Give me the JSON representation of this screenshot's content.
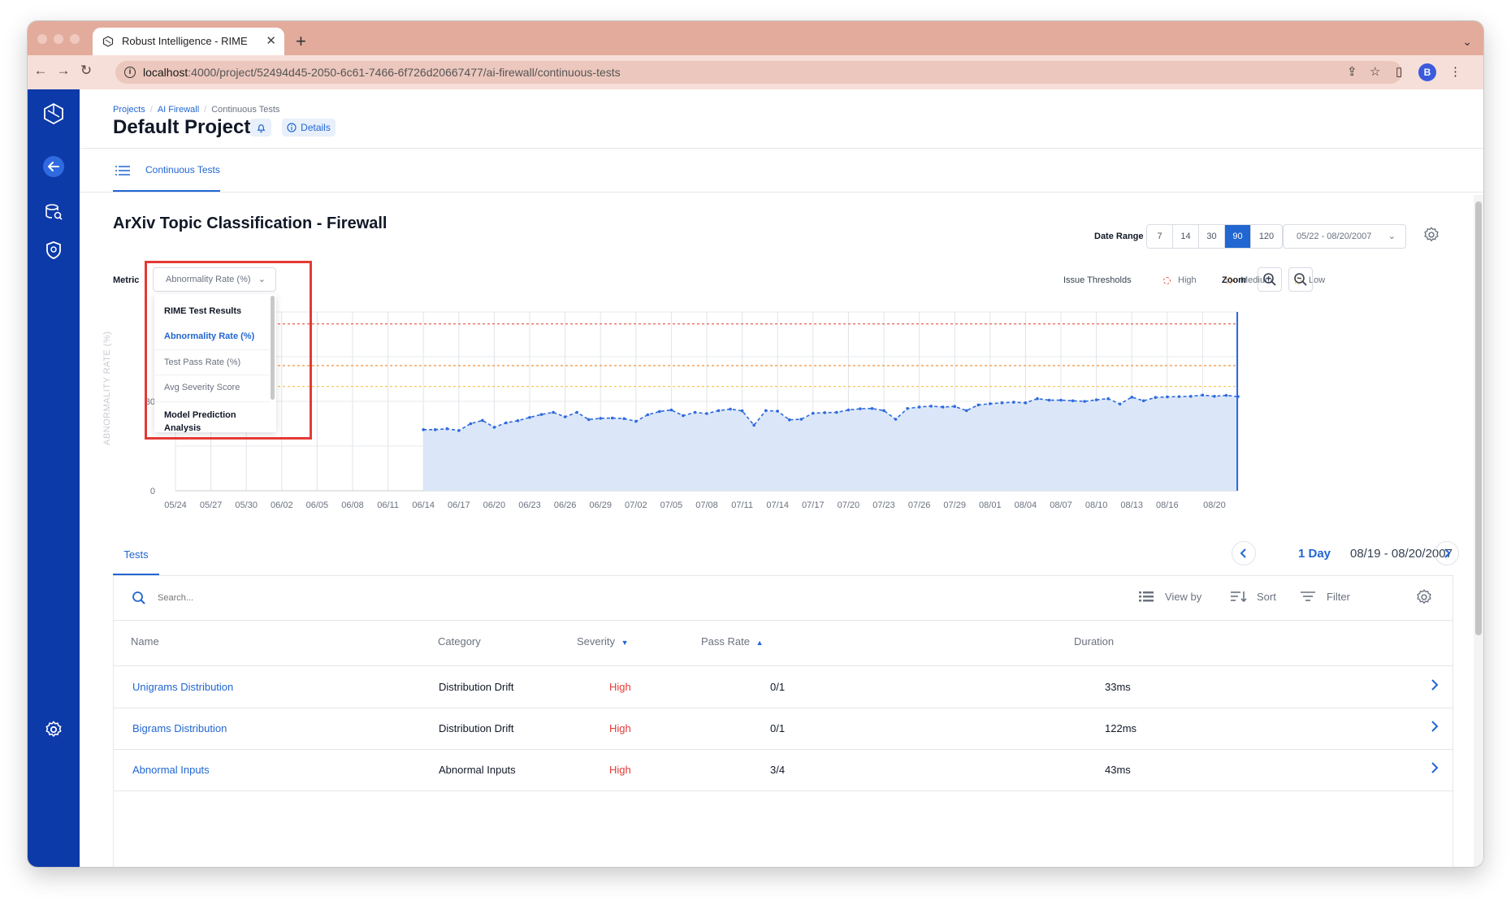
{
  "browser": {
    "tab_title": "Robust Intelligence - RIME",
    "url_host": "localhost",
    "url_path": ":4000/project/52494d45-2050-6c61-7466-6f726d20667477/ai-firewall/continuous-tests",
    "profile_initial": "B"
  },
  "breadcrumb": {
    "items": [
      "Projects",
      "AI Firewall",
      "Continuous Tests"
    ]
  },
  "header": {
    "title": "Default Project",
    "details_label": "Details"
  },
  "subnav": {
    "tab_label": "Continuous Tests"
  },
  "chart_section": {
    "title": "ArXiv Topic Classification - Firewall",
    "date_range_label": "Date Range",
    "date_range_options": [
      "7",
      "14",
      "30",
      "90",
      "120"
    ],
    "date_range_selected": "90",
    "date_picker_value": "05/22 - 08/20/2007",
    "metric_label": "Metric",
    "metric_value": "Abnormality Rate (%)",
    "issue_thresholds_label": "Issue Thresholds",
    "threshold_legend": [
      {
        "label": "High",
        "color": "#e5533d"
      },
      {
        "label": "Medium",
        "color": "#f0903a"
      },
      {
        "label": "Low",
        "color": "#f3c04a"
      }
    ],
    "zoom_label": "Zoom"
  },
  "metric_dropdown": {
    "items": [
      {
        "label": "RIME Test Results",
        "kind": "header"
      },
      {
        "label": "Abnormality Rate (%)",
        "kind": "selected"
      },
      {
        "label": "Test Pass Rate (%)",
        "kind": "option"
      },
      {
        "label": "Avg Severity Score",
        "kind": "option"
      },
      {
        "label": "Model Prediction Analysis",
        "kind": "header"
      }
    ]
  },
  "chart_data": {
    "type": "area",
    "ylabel": "ABNORMALITY RATE (%)",
    "y_ticks": [
      0,
      30
    ],
    "ylim": [
      0,
      60
    ],
    "x_ticks": [
      "05/24",
      "05/27",
      "05/30",
      "06/02",
      "06/05",
      "06/08",
      "06/11",
      "06/14",
      "06/17",
      "06/20",
      "06/23",
      "06/26",
      "06/29",
      "07/02",
      "07/05",
      "07/08",
      "07/11",
      "07/14",
      "07/17",
      "07/20",
      "07/23",
      "07/26",
      "07/29",
      "08/01",
      "08/04",
      "08/07",
      "08/10",
      "08/13",
      "08/16",
      "08/20"
    ],
    "threshold_lines": {
      "high": 56,
      "medium": 42,
      "low": 35
    },
    "x_days": [
      21,
      22,
      23,
      24,
      25,
      26,
      27,
      28,
      29,
      30,
      31,
      32,
      33,
      34,
      35,
      36,
      37,
      38,
      39,
      40,
      41,
      42,
      43,
      44,
      45,
      46,
      47,
      48,
      49,
      50,
      51,
      52,
      53,
      54,
      55,
      56,
      57,
      58,
      59,
      60,
      61,
      62,
      63,
      64,
      65,
      66,
      67,
      68,
      69,
      70,
      71,
      72,
      73,
      74,
      75,
      76,
      77,
      78,
      79,
      80,
      81,
      82,
      83,
      84,
      85,
      86,
      87,
      88,
      89,
      90
    ],
    "values": [
      20.5,
      20.5,
      20.8,
      20.2,
      22.5,
      23.6,
      21.3,
      22.8,
      23.5,
      24.6,
      25.6,
      26.3,
      24.8,
      26.3,
      23.9,
      24.3,
      24.4,
      24.2,
      23.3,
      25.5,
      26.6,
      27.1,
      25.2,
      26.3,
      25.9,
      26.9,
      27.4,
      26.8,
      22.0,
      26.9,
      26.7,
      23.8,
      24.0,
      26.0,
      26.2,
      26.3,
      27.1,
      27.5,
      27.6,
      26.9,
      24.0,
      27.6,
      28.1,
      28.4,
      28.1,
      28.3,
      26.9,
      28.8,
      29.2,
      29.5,
      29.7,
      29.5,
      30.9,
      30.4,
      30.4,
      30.2,
      30.0,
      30.5,
      30.9,
      29.1,
      31.4,
      30.2,
      31.3,
      31.5,
      31.6,
      31.7,
      32.1,
      31.7,
      32.0,
      31.6
    ]
  },
  "tests": {
    "tab_label": "Tests",
    "period_label": "1 Day",
    "period_range": "08/19 - 08/20/2007",
    "search_placeholder": "Search...",
    "view_by_label": "View by",
    "sort_label": "Sort",
    "filter_label": "Filter",
    "columns": [
      "Name",
      "Category",
      "Severity",
      "Pass Rate",
      "Duration"
    ],
    "rows": [
      {
        "name": "Unigrams Distribution",
        "category": "Distribution Drift",
        "severity": "High",
        "pass_rate": "0/1",
        "duration": "33ms"
      },
      {
        "name": "Bigrams Distribution",
        "category": "Distribution Drift",
        "severity": "High",
        "pass_rate": "0/1",
        "duration": "122ms"
      },
      {
        "name": "Abnormal Inputs",
        "category": "Abnormal Inputs",
        "severity": "High",
        "pass_rate": "3/4",
        "duration": "43ms"
      }
    ]
  },
  "colors": {
    "brand": "#0d3aa9",
    "accent": "#2166d1",
    "high": "#e53935"
  }
}
